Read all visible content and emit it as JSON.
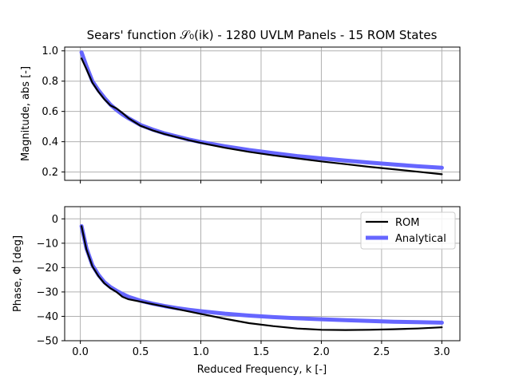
{
  "chart_data": {
    "type": "line",
    "title": "Sears' function 𝒮₀(ik) - 1280 UVLM Panels - 15 ROM States",
    "xlabel": "Reduced Frequency, k [-]",
    "xlim": [
      -0.13,
      3.15
    ],
    "xticks": [
      0.0,
      0.5,
      1.0,
      1.5,
      2.0,
      2.5,
      3.0
    ],
    "xtick_labels": [
      "0.0",
      "0.5",
      "1.0",
      "1.5",
      "2.0",
      "2.5",
      "3.0"
    ],
    "grid": true,
    "legend_position": "top-right",
    "subplots": [
      {
        "id": "magnitude",
        "ylabel": "Magnitude, abs [-]",
        "ylim": [
          0.145,
          1.025
        ],
        "yticks": [
          0.2,
          0.4,
          0.6,
          0.8,
          1.0
        ],
        "ytick_labels": [
          "0.2",
          "0.4",
          "0.6",
          "0.8",
          "1.0"
        ],
        "show_xtick_labels": false,
        "series": [
          {
            "name": "Analytical",
            "color": "#6666ff",
            "x": [
              0.01,
              0.05,
              0.1,
              0.15,
              0.2,
              0.25,
              0.3,
              0.35,
              0.4,
              0.5,
              0.6,
              0.7,
              0.8,
              0.9,
              1.0,
              1.2,
              1.4,
              1.6,
              1.8,
              2.0,
              2.2,
              2.4,
              2.6,
              2.8,
              3.0
            ],
            "y": [
              0.99,
              0.9,
              0.8,
              0.74,
              0.69,
              0.645,
              0.61,
              0.58,
              0.555,
              0.51,
              0.48,
              0.455,
              0.435,
              0.415,
              0.398,
              0.37,
              0.345,
              0.325,
              0.305,
              0.29,
              0.275,
              0.262,
              0.25,
              0.238,
              0.228
            ]
          },
          {
            "name": "ROM",
            "color": "#000000",
            "x": [
              0.01,
              0.05,
              0.1,
              0.15,
              0.2,
              0.25,
              0.3,
              0.35,
              0.4,
              0.5,
              0.6,
              0.7,
              0.8,
              0.9,
              1.0,
              1.2,
              1.4,
              1.6,
              1.8,
              2.0,
              2.2,
              2.4,
              2.6,
              2.8,
              3.0
            ],
            "y": [
              0.95,
              0.88,
              0.79,
              0.73,
              0.68,
              0.64,
              0.62,
              0.59,
              0.555,
              0.505,
              0.475,
              0.45,
              0.43,
              0.41,
              0.392,
              0.36,
              0.333,
              0.31,
              0.29,
              0.27,
              0.252,
              0.234,
              0.218,
              0.202,
              0.185
            ]
          }
        ]
      },
      {
        "id": "phase",
        "ylabel": "Phase, Φ [deg]",
        "ylim": [
          -50,
          5
        ],
        "yticks": [
          0,
          -10,
          -20,
          -30,
          -40,
          -50
        ],
        "ytick_labels": [
          "0",
          "−10",
          "−20",
          "−30",
          "−40",
          "−50"
        ],
        "show_xtick_labels": true,
        "series": [
          {
            "name": "Analytical",
            "color": "#6666ff",
            "x": [
              0.01,
              0.05,
              0.1,
              0.15,
              0.2,
              0.25,
              0.3,
              0.35,
              0.4,
              0.5,
              0.6,
              0.7,
              0.8,
              0.9,
              1.0,
              1.2,
              1.4,
              1.6,
              1.8,
              2.0,
              2.2,
              2.4,
              2.6,
              2.8,
              3.0
            ],
            "y": [
              -3.0,
              -12.0,
              -19.0,
              -23.0,
              -26.0,
              -28.0,
              -29.5,
              -30.8,
              -32.0,
              -33.6,
              -34.8,
              -35.8,
              -36.6,
              -37.3,
              -37.9,
              -38.9,
              -39.7,
              -40.3,
              -40.8,
              -41.2,
              -41.6,
              -41.9,
              -42.2,
              -42.4,
              -42.6
            ]
          },
          {
            "name": "ROM",
            "color": "#000000",
            "x": [
              0.01,
              0.05,
              0.1,
              0.15,
              0.2,
              0.25,
              0.3,
              0.35,
              0.4,
              0.5,
              0.6,
              0.7,
              0.8,
              0.9,
              1.0,
              1.2,
              1.4,
              1.6,
              1.8,
              2.0,
              2.2,
              2.4,
              2.6,
              2.8,
              3.0
            ],
            "y": [
              -3.0,
              -12.5,
              -19.5,
              -23.5,
              -26.5,
              -28.5,
              -30.0,
              -32.0,
              -33.0,
              -34.0,
              -35.0,
              -36.0,
              -37.0,
              -38.0,
              -39.0,
              -41.0,
              -42.8,
              -44.0,
              -45.0,
              -45.5,
              -45.6,
              -45.5,
              -45.3,
              -45.0,
              -44.5
            ]
          }
        ],
        "legend": [
          {
            "label": "ROM",
            "color": "#000000"
          },
          {
            "label": "Analytical",
            "color": "#6666ff"
          }
        ]
      }
    ]
  }
}
